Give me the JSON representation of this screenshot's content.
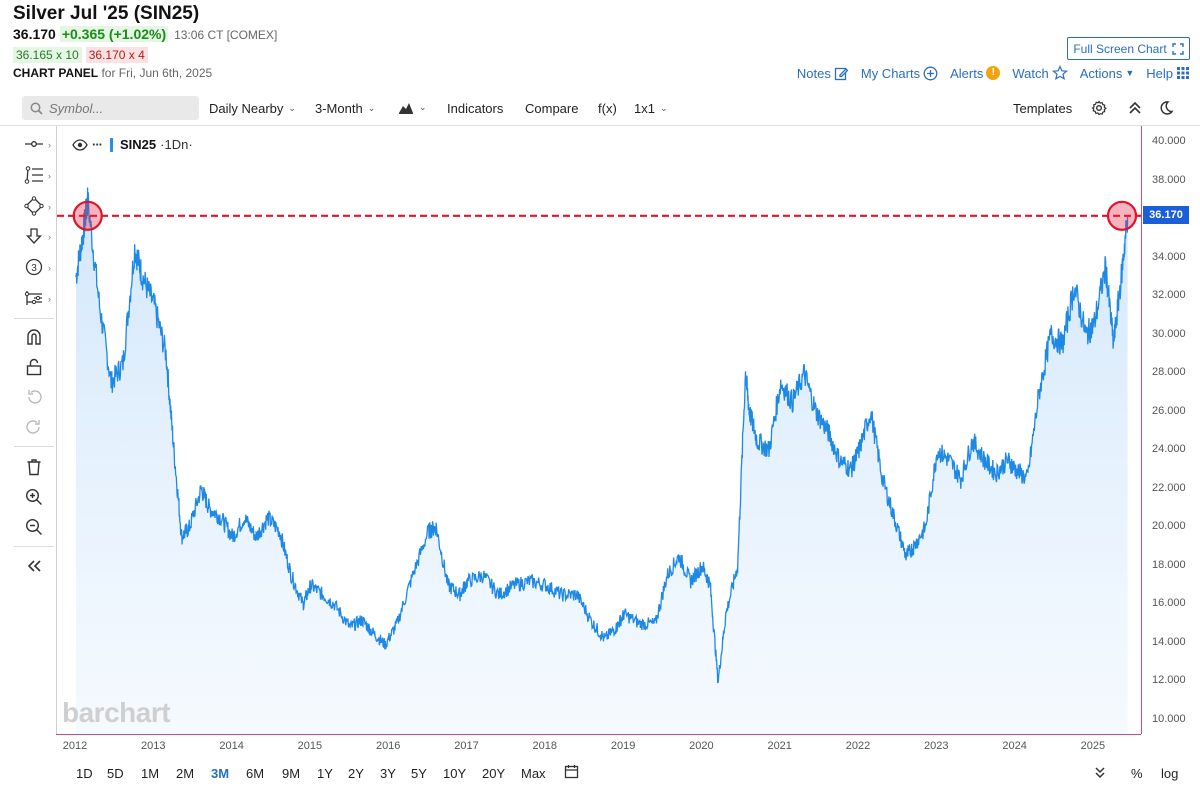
{
  "header": {
    "title": "Silver Jul '25 (SIN25)",
    "last": "36.170",
    "change": "+0.365 (+1.02%)",
    "time": "13:06 CT [COMEX]",
    "bid": "36.165 x 10",
    "ask": "36.170 x 4",
    "panel_label": "CHART PANEL",
    "panel_date": "for Fri, Jun 6th, 2025"
  },
  "top_actions": {
    "full_screen": "Full Screen Chart",
    "notes": "Notes",
    "my_charts": "My Charts",
    "alerts": "Alerts",
    "alerts_badge": "!",
    "watch": "Watch",
    "actions": "Actions",
    "help": "Help"
  },
  "toolbar": {
    "search_placeholder": "Symbol...",
    "aggregation": "Daily Nearby",
    "period": "3-Month",
    "indicators": "Indicators",
    "compare": "Compare",
    "fx": "f(x)",
    "layout": "1x1",
    "templates": "Templates"
  },
  "legend": {
    "symbol": "SIN25",
    "interval": "·1Dn·"
  },
  "price_tag": "36.170",
  "watermark": "barchart",
  "yaxis": [
    "40.000",
    "38.000",
    "36.000",
    "34.000",
    "32.000",
    "30.000",
    "28.000",
    "26.000",
    "24.000",
    "22.000",
    "20.000",
    "18.000",
    "16.000",
    "14.000",
    "12.000",
    "10.000"
  ],
  "xaxis": [
    "2012",
    "2013",
    "2014",
    "2015",
    "2016",
    "2017",
    "2018",
    "2019",
    "2020",
    "2021",
    "2022",
    "2023",
    "2024",
    "2025"
  ],
  "ranges": [
    "1D",
    "5D",
    "1M",
    "2M",
    "3M",
    "6M",
    "9M",
    "1Y",
    "2Y",
    "3Y",
    "5Y",
    "10Y",
    "20Y",
    "Max"
  ],
  "active_range": "3M",
  "bottom_right": {
    "percent": "%",
    "log": "log"
  },
  "chart_data": {
    "type": "area",
    "title": "Silver Jul '25 (SIN25) Daily Nearby",
    "xlabel": "",
    "ylabel": "",
    "ylim": [
      10,
      40
    ],
    "reference_line": 36.17,
    "x": [
      2012.0,
      2012.1,
      2012.15,
      2012.3,
      2012.45,
      2012.6,
      2012.75,
      2012.85,
      2013.0,
      2013.15,
      2013.25,
      2013.35,
      2013.45,
      2013.6,
      2013.7,
      2013.85,
      2014.0,
      2014.15,
      2014.3,
      2014.45,
      2014.6,
      2014.75,
      2014.9,
      2015.0,
      2015.15,
      2015.3,
      2015.5,
      2015.65,
      2015.8,
      2015.95,
      2016.1,
      2016.3,
      2016.5,
      2016.6,
      2016.75,
      2016.9,
      2017.0,
      2017.2,
      2017.4,
      2017.6,
      2017.8,
      2018.0,
      2018.2,
      2018.4,
      2018.6,
      2018.75,
      2018.9,
      2019.0,
      2019.2,
      2019.4,
      2019.55,
      2019.7,
      2019.85,
      2020.0,
      2020.1,
      2020.2,
      2020.3,
      2020.45,
      2020.55,
      2020.6,
      2020.7,
      2020.85,
      2021.0,
      2021.15,
      2021.3,
      2021.45,
      2021.6,
      2021.75,
      2021.9,
      2022.0,
      2022.15,
      2022.3,
      2022.45,
      2022.6,
      2022.7,
      2022.85,
      2023.0,
      2023.15,
      2023.3,
      2023.45,
      2023.6,
      2023.75,
      2023.9,
      2024.0,
      2024.15,
      2024.3,
      2024.45,
      2024.6,
      2024.75,
      2024.9,
      2025.0,
      2025.15,
      2025.25,
      2025.35,
      2025.43
    ],
    "values": [
      33.0,
      35.5,
      37.0,
      31.5,
      27.5,
      28.5,
      34.5,
      33.0,
      31.5,
      29.0,
      24.0,
      19.5,
      20.0,
      22.0,
      21.0,
      20.5,
      19.5,
      20.5,
      19.5,
      20.5,
      19.8,
      17.5,
      16.0,
      17.0,
      16.5,
      16.0,
      14.8,
      15.2,
      14.5,
      13.9,
      15.0,
      17.5,
      19.8,
      20.0,
      17.0,
      16.5,
      17.2,
      17.5,
      16.5,
      17.0,
      17.2,
      17.0,
      16.5,
      16.5,
      15.0,
      14.2,
      14.8,
      15.5,
      15.0,
      15.0,
      17.5,
      18.5,
      17.2,
      18.0,
      17.0,
      12.0,
      15.5,
      18.0,
      28.0,
      26.0,
      24.5,
      24.0,
      27.5,
      26.5,
      28.0,
      26.0,
      25.0,
      23.5,
      23.0,
      24.0,
      26.0,
      22.5,
      20.5,
      18.5,
      19.0,
      20.0,
      24.0,
      23.5,
      22.5,
      24.5,
      23.5,
      22.8,
      23.5,
      23.0,
      22.5,
      27.0,
      30.0,
      29.5,
      32.5,
      30.0,
      30.5,
      33.5,
      29.5,
      33.0,
      36.17
    ]
  }
}
